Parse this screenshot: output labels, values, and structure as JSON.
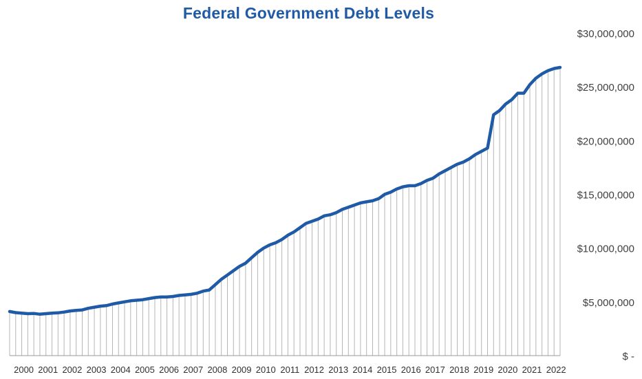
{
  "chart_data": {
    "type": "line",
    "title": "Federal Government Debt Levels",
    "xlabel": "",
    "ylabel": "",
    "ylim": [
      0,
      30000000
    ],
    "y_axis_position": "right",
    "y_ticks": [
      {
        "value": 0,
        "label": "$ -"
      },
      {
        "value": 5000000,
        "label": "$5,000,000"
      },
      {
        "value": 10000000,
        "label": "$10,000,000"
      },
      {
        "value": 15000000,
        "label": "$15,000,000"
      },
      {
        "value": 20000000,
        "label": "$20,000,000"
      },
      {
        "value": 25000000,
        "label": "$25,000,000"
      },
      {
        "value": 30000000,
        "label": "$30,000,000"
      }
    ],
    "x_tick_labels": [
      "2000",
      "2001",
      "2002",
      "2003",
      "2004",
      "2005",
      "2006",
      "2007",
      "2008",
      "2009",
      "2010",
      "2011",
      "2012",
      "2013",
      "2014",
      "2015",
      "2016",
      "2017",
      "2018",
      "2019",
      "2020",
      "2021",
      "2022"
    ],
    "x_range": [
      1999.5,
      2022.25
    ],
    "grid": "vertical lines at each quarter, drop from line to baseline",
    "legend": "none",
    "colors": {
      "line": "#1f5aa6",
      "grid": "#b5b5b5",
      "title": "#1f5aa6"
    },
    "series": [
      {
        "x": [
          1999.5,
          1999.75,
          2000.0,
          2000.25,
          2000.5,
          2000.75,
          2001.0,
          2001.25,
          2001.5,
          2001.75,
          2002.0,
          2002.25,
          2002.5,
          2002.75,
          2003.0,
          2003.25,
          2003.5,
          2003.75,
          2004.0,
          2004.25,
          2004.5,
          2004.75,
          2005.0,
          2005.25,
          2005.5,
          2005.75,
          2006.0,
          2006.25,
          2006.5,
          2006.75,
          2007.0,
          2007.25,
          2007.5,
          2007.75,
          2008.0,
          2008.25,
          2008.5,
          2008.75,
          2009.0,
          2009.25,
          2009.5,
          2009.75,
          2010.0,
          2010.25,
          2010.5,
          2010.75,
          2011.0,
          2011.25,
          2011.5,
          2011.75,
          2012.0,
          2012.25,
          2012.5,
          2012.75,
          2013.0,
          2013.25,
          2013.5,
          2013.75,
          2014.0,
          2014.25,
          2014.5,
          2014.75,
          2015.0,
          2015.25,
          2015.5,
          2015.75,
          2016.0,
          2016.25,
          2016.5,
          2016.75,
          2017.0,
          2017.25,
          2017.5,
          2017.75,
          2018.0,
          2018.25,
          2018.5,
          2018.75,
          2019.0,
          2019.25,
          2019.5,
          2019.75,
          2020.0,
          2020.25,
          2020.5,
          2020.75,
          2021.0,
          2021.25,
          2021.5,
          2021.75,
          2022.0,
          2022.25
        ],
        "values": [
          4100000,
          4000000,
          3950000,
          3900000,
          3920000,
          3850000,
          3900000,
          3950000,
          3980000,
          4050000,
          4150000,
          4200000,
          4250000,
          4400000,
          4500000,
          4600000,
          4650000,
          4800000,
          4900000,
          5000000,
          5100000,
          5150000,
          5200000,
          5300000,
          5400000,
          5450000,
          5450000,
          5500000,
          5600000,
          5650000,
          5700000,
          5800000,
          6000000,
          6100000,
          6600000,
          7100000,
          7500000,
          7900000,
          8300000,
          8600000,
          9100000,
          9600000,
          10000000,
          10300000,
          10500000,
          10800000,
          11200000,
          11500000,
          11900000,
          12300000,
          12500000,
          12700000,
          13000000,
          13100000,
          13300000,
          13600000,
          13800000,
          14000000,
          14200000,
          14300000,
          14400000,
          14600000,
          15000000,
          15200000,
          15500000,
          15700000,
          15800000,
          15800000,
          16000000,
          16300000,
          16500000,
          16900000,
          17200000,
          17500000,
          17800000,
          18000000,
          18300000,
          18700000,
          19000000,
          19300000,
          22400000,
          22800000,
          23400000,
          23800000,
          24400000,
          24400000,
          25200000,
          25800000,
          26200000,
          26500000,
          26700000,
          26800000
        ]
      }
    ]
  }
}
